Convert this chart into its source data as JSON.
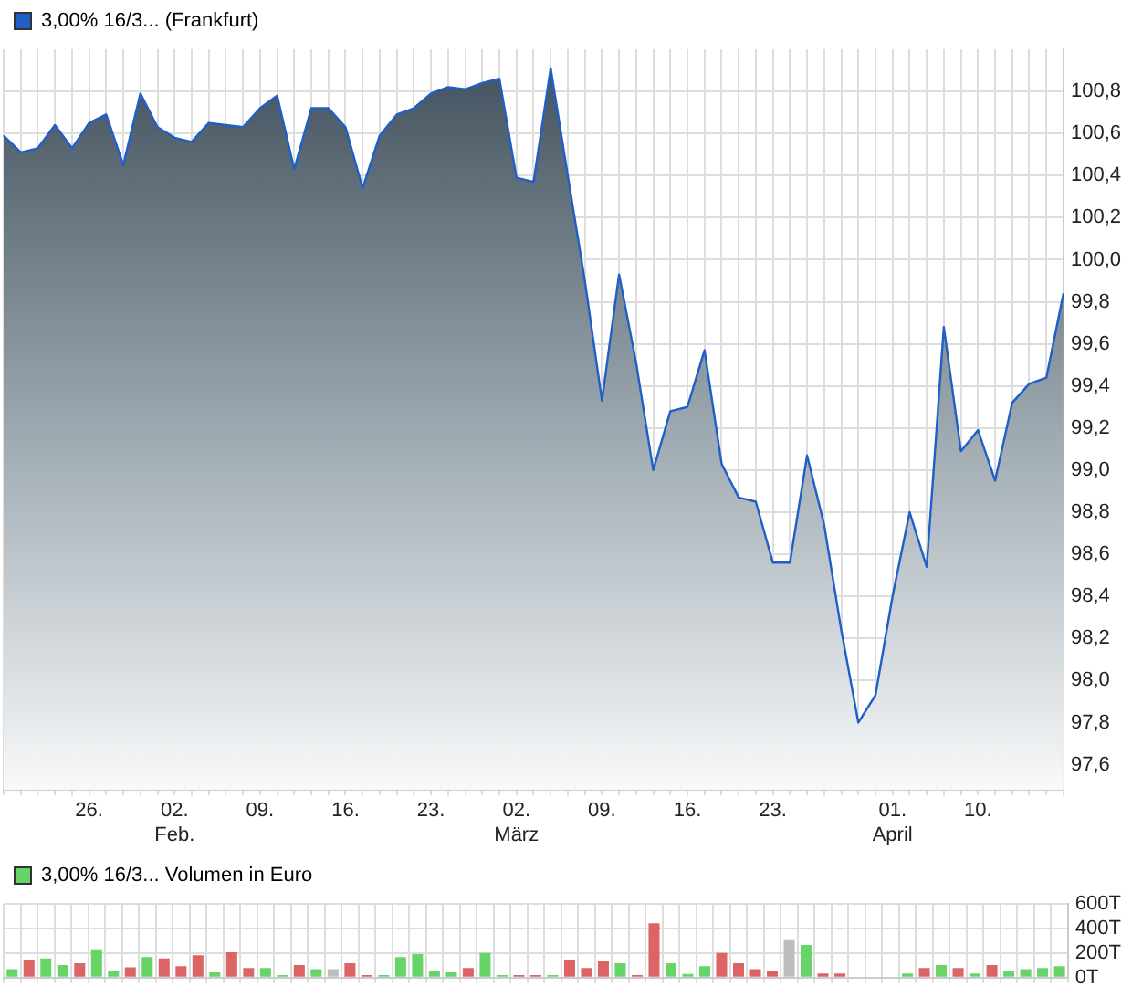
{
  "chart_data": [
    {
      "type": "area",
      "legend": "top left",
      "grid": true,
      "categories": [
        null,
        null,
        null,
        null,
        null,
        "26.",
        null,
        null,
        null,
        null,
        "02.\nFeb.",
        null,
        null,
        null,
        null,
        "09.",
        null,
        null,
        null,
        null,
        "16.",
        null,
        null,
        null,
        null,
        "23.",
        null,
        null,
        null,
        null,
        "02.\nMärz",
        null,
        null,
        null,
        null,
        "09.",
        null,
        null,
        null,
        null,
        "16.",
        null,
        null,
        null,
        null,
        "23.",
        null,
        null,
        null,
        null,
        null,
        null,
        "01.\nApril",
        null,
        null,
        null,
        null,
        "10.",
        null,
        null,
        null,
        null,
        null
      ],
      "series": [
        {
          "name": "3,00% 16/3... (Frankfurt)",
          "color": "#1f5fc8",
          "values": [
            100.59,
            100.51,
            100.53,
            100.64,
            100.53,
            100.65,
            100.69,
            100.45,
            100.79,
            100.63,
            100.58,
            100.56,
            100.65,
            100.64,
            100.63,
            100.72,
            100.78,
            100.43,
            100.72,
            100.72,
            100.63,
            100.34,
            100.59,
            100.69,
            100.72,
            100.79,
            100.82,
            100.81,
            100.84,
            100.86,
            100.39,
            100.37,
            100.91,
            100.4,
            99.9,
            99.33,
            99.93,
            99.51,
            99.0,
            99.28,
            99.3,
            99.57,
            99.03,
            98.87,
            98.85,
            98.56,
            98.56,
            99.07,
            98.74,
            98.24,
            97.8,
            97.93,
            98.4,
            98.8,
            98.54,
            99.68,
            99.09,
            99.19,
            98.95,
            99.32,
            99.41,
            99.44,
            99.84
          ]
        }
      ],
      "ylim": [
        97.48,
        101.0
      ],
      "yticks": [
        {
          "value": 97.6,
          "label": "97,6"
        },
        {
          "value": 97.8,
          "label": "97,8"
        },
        {
          "value": 98.0,
          "label": "98,0"
        },
        {
          "value": 98.2,
          "label": "98,2"
        },
        {
          "value": 98.4,
          "label": "98,4"
        },
        {
          "value": 98.6,
          "label": "98,6"
        },
        {
          "value": 98.8,
          "label": "98,8"
        },
        {
          "value": 99.0,
          "label": "99,0"
        },
        {
          "value": 99.2,
          "label": "99,2"
        },
        {
          "value": 99.4,
          "label": "99,4"
        },
        {
          "value": 99.6,
          "label": "99,6"
        },
        {
          "value": 99.8,
          "label": "99,8"
        },
        {
          "value": 100.0,
          "label": "100,0"
        },
        {
          "value": 100.2,
          "label": "100,2"
        },
        {
          "value": 100.4,
          "label": "100,4"
        },
        {
          "value": 100.6,
          "label": "100,6"
        },
        {
          "value": 100.8,
          "label": "100,8"
        }
      ]
    },
    {
      "type": "bar",
      "legend": "top left",
      "grid": true,
      "tick_labels": "y",
      "categories": [
        null,
        null,
        null,
        null,
        null,
        null,
        null,
        null,
        null,
        null,
        null,
        null,
        null,
        null,
        null,
        null,
        null,
        null,
        null,
        null,
        null,
        null,
        null,
        null,
        null,
        null,
        null,
        null,
        null,
        null,
        null,
        null,
        null,
        null,
        null,
        null,
        null,
        null,
        null,
        null,
        null,
        null,
        null,
        null,
        null,
        null,
        null,
        null,
        null,
        null,
        null,
        null,
        null,
        null,
        null,
        null,
        null,
        null,
        null,
        null,
        null,
        null,
        null
      ],
      "series": [
        {
          "name": "3,00% 16/3... Volumen in Euro",
          "color": "#66d466",
          "values": [
            69,
            143,
            157,
            103,
            118,
            231,
            54,
            84,
            167,
            157,
            93,
            182,
            44,
            206,
            79,
            79,
            20,
            103,
            69,
            69,
            118,
            20,
            20,
            167,
            192,
            54,
            44,
            79,
            201,
            20,
            20,
            20,
            20,
            143,
            79,
            133,
            118,
            20,
            442,
            118,
            30,
            93,
            201,
            118,
            69,
            54,
            305,
            265,
            34,
            34,
            null,
            null,
            null,
            34,
            79,
            103,
            79,
            34,
            103,
            54,
            69,
            79,
            93
          ],
          "colors": [
            "#66d466",
            "#dc6464",
            "#66d466",
            "#66d466",
            "#dc6464",
            "#66d466",
            "#66d466",
            "#dc6464",
            "#66d466",
            "#dc6464",
            "#dc6464",
            "#dc6464",
            "#66d466",
            "#dc6464",
            "#dc6464",
            "#66d466",
            "#66d466",
            "#dc6464",
            "#66d466",
            "#bdbdbd",
            "#dc6464",
            "#dc6464",
            "#66d466",
            "#66d466",
            "#66d466",
            "#66d466",
            "#66d466",
            "#dc6464",
            "#66d466",
            "#66d466",
            "#dc6464",
            "#dc6464",
            "#66d466",
            "#dc6464",
            "#dc6464",
            "#dc6464",
            "#66d466",
            "#dc6464",
            "#dc6464",
            "#66d466",
            "#66d466",
            "#66d466",
            "#dc6464",
            "#dc6464",
            "#dc6464",
            "#dc6464",
            "#bdbdbd",
            "#66d466",
            "#dc6464",
            "#dc6464",
            "#66d466",
            "#66d466",
            "#66d466",
            "#66d466",
            "#dc6464",
            "#66d466",
            "#dc6464",
            "#66d466",
            "#dc6464",
            "#66d466",
            "#66d466",
            "#66d466",
            "#66d466"
          ]
        }
      ],
      "ylim": [
        0,
        600
      ],
      "yticks": [
        {
          "value": 0,
          "label": "0T"
        },
        {
          "value": 200,
          "label": "200T"
        },
        {
          "value": 400,
          "label": "400T"
        },
        {
          "value": 600,
          "label": "600T"
        }
      ]
    }
  ]
}
